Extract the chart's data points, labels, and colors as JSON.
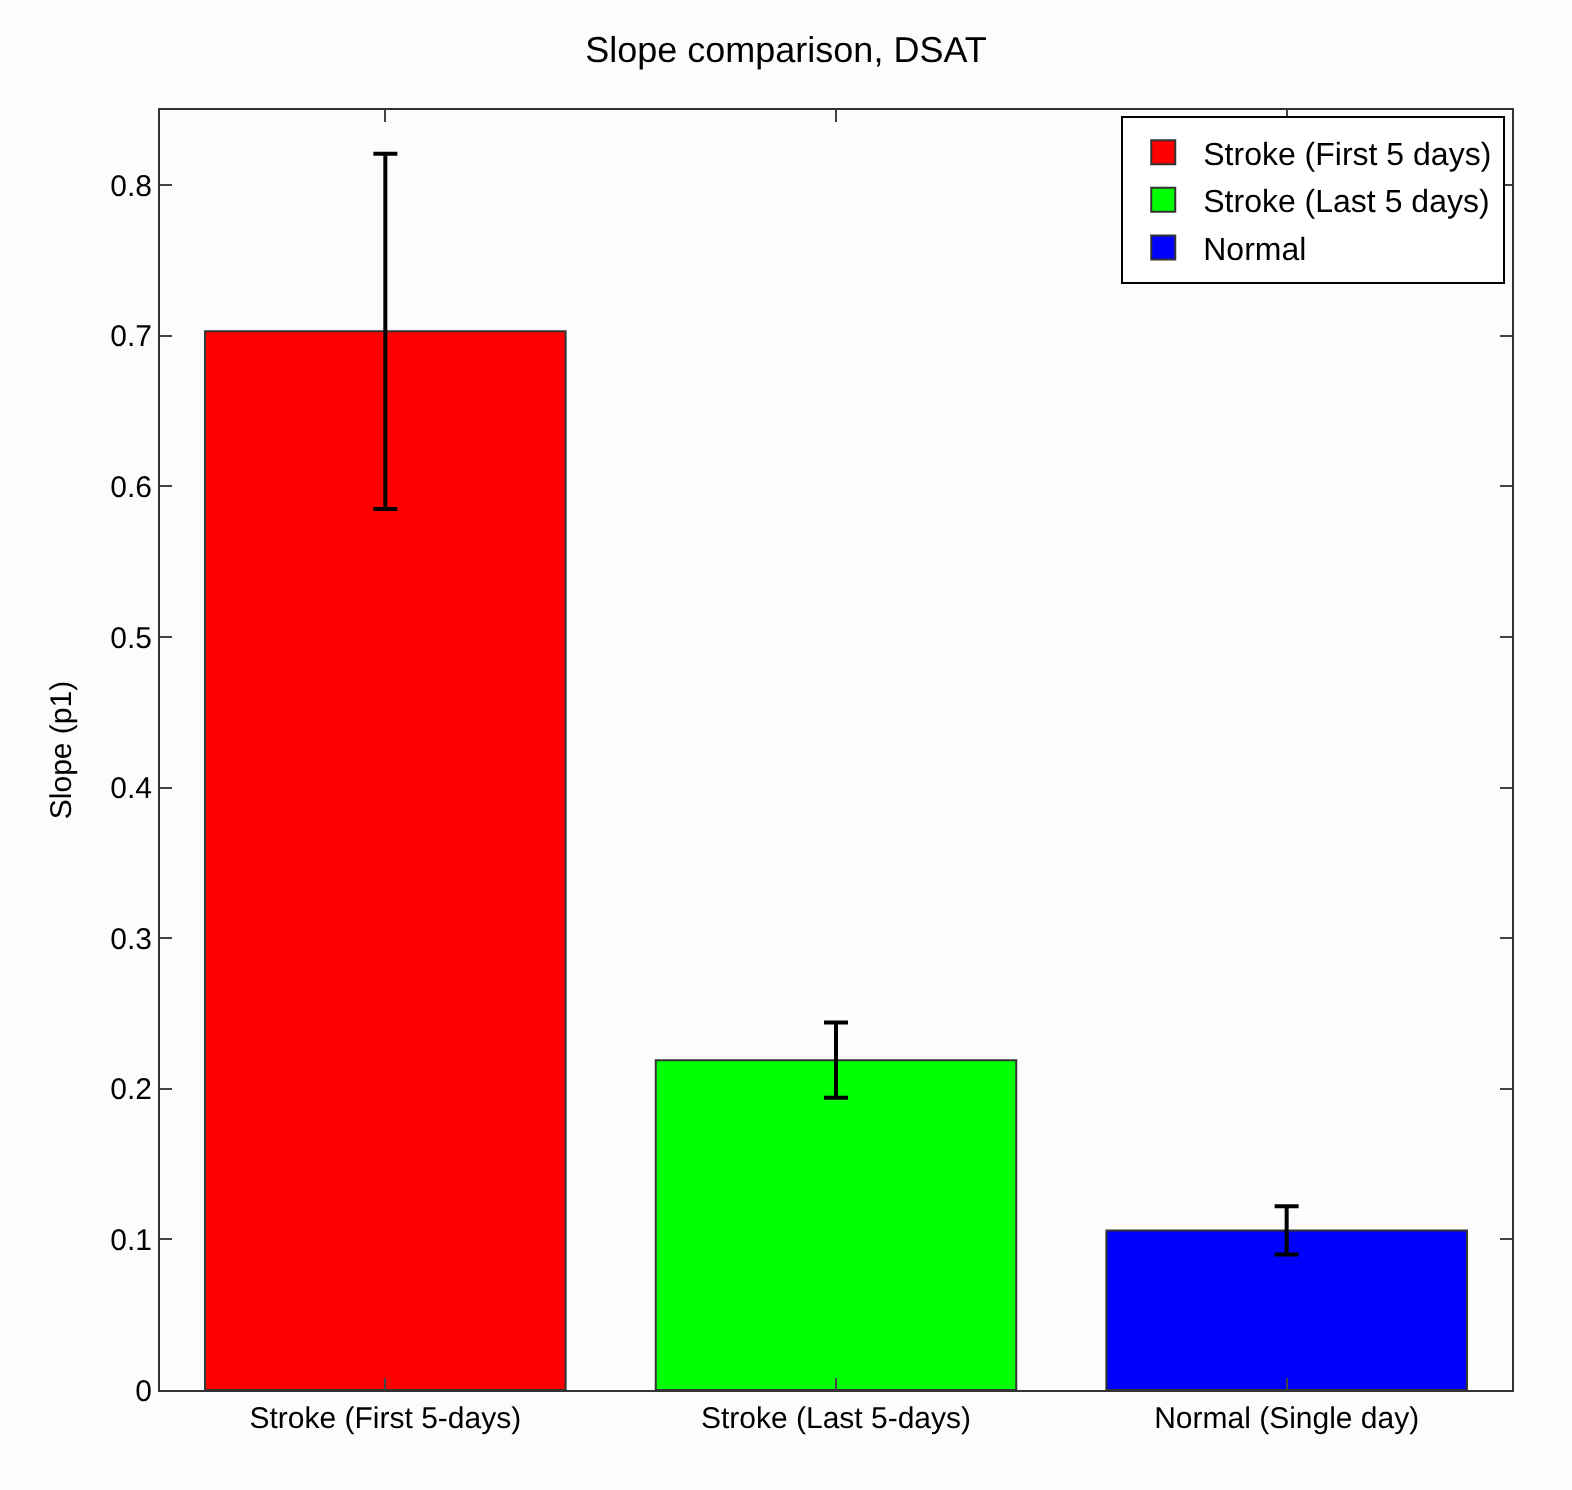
{
  "chart_data": {
    "type": "bar",
    "title": "Slope comparison, DSAT",
    "ylabel": "Slope (p1)",
    "categories": [
      "Stroke (First 5-days)",
      "Stroke (Last 5-days)",
      "Normal (Single day)"
    ],
    "series": [
      {
        "name": "Stroke (First 5 days)",
        "color": "#ff0000",
        "values": [
          0.703,
          null,
          null
        ],
        "errors": [
          0.118,
          null,
          null
        ]
      },
      {
        "name": "Stroke (Last 5 days)",
        "color": "#00ff00",
        "values": [
          null,
          0.219,
          null
        ],
        "errors": [
          null,
          0.025,
          null
        ]
      },
      {
        "name": "Normal",
        "color": "#0000ff",
        "values": [
          null,
          null,
          0.106
        ],
        "errors": [
          null,
          null,
          0.016
        ]
      }
    ],
    "ylim": [
      0,
      0.85
    ],
    "yticks": [
      0,
      0.1,
      0.2,
      0.3,
      0.4,
      0.5,
      0.6,
      0.7,
      0.8
    ],
    "legend": "top right"
  }
}
